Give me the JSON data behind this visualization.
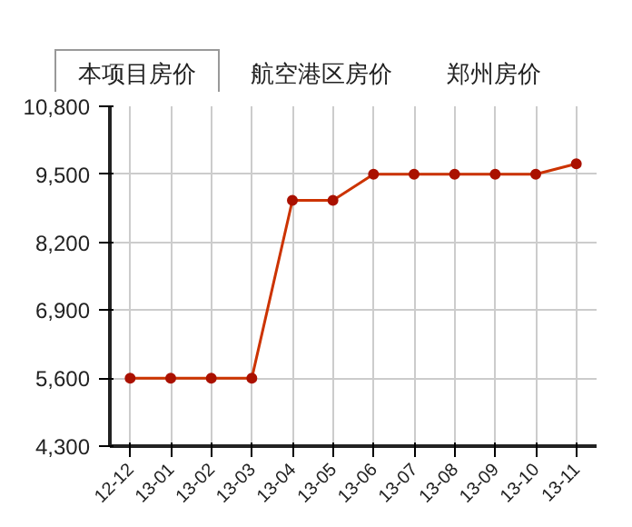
{
  "chart_data": {
    "type": "line",
    "annotations": [
      "本项目房价",
      "航空港区房价",
      "郑州房价"
    ],
    "categories": [
      "12-12",
      "13-01",
      "13-02",
      "13-03",
      "13-04",
      "13-05",
      "13-06",
      "13-07",
      "13-08",
      "13-09",
      "13-10",
      "13-11"
    ],
    "series": [
      {
        "color": "#cc3300",
        "values": [
          5600,
          5600,
          5600,
          5600,
          9000,
          9000,
          9500,
          9500,
          9500,
          9500,
          9500,
          9700
        ]
      }
    ],
    "ylim": [
      4300,
      10800
    ],
    "yticks": [
      {
        "value": 4300,
        "label": "4,300"
      },
      {
        "value": 5600,
        "label": "5,600"
      },
      {
        "value": 6900,
        "label": "6,900"
      },
      {
        "value": 8200,
        "label": "8,200"
      },
      {
        "value": 9500,
        "label": "9,500"
      },
      {
        "value": 10800,
        "label": "10,800"
      }
    ],
    "grid": true,
    "marker": "circle",
    "line_style": "solid"
  }
}
